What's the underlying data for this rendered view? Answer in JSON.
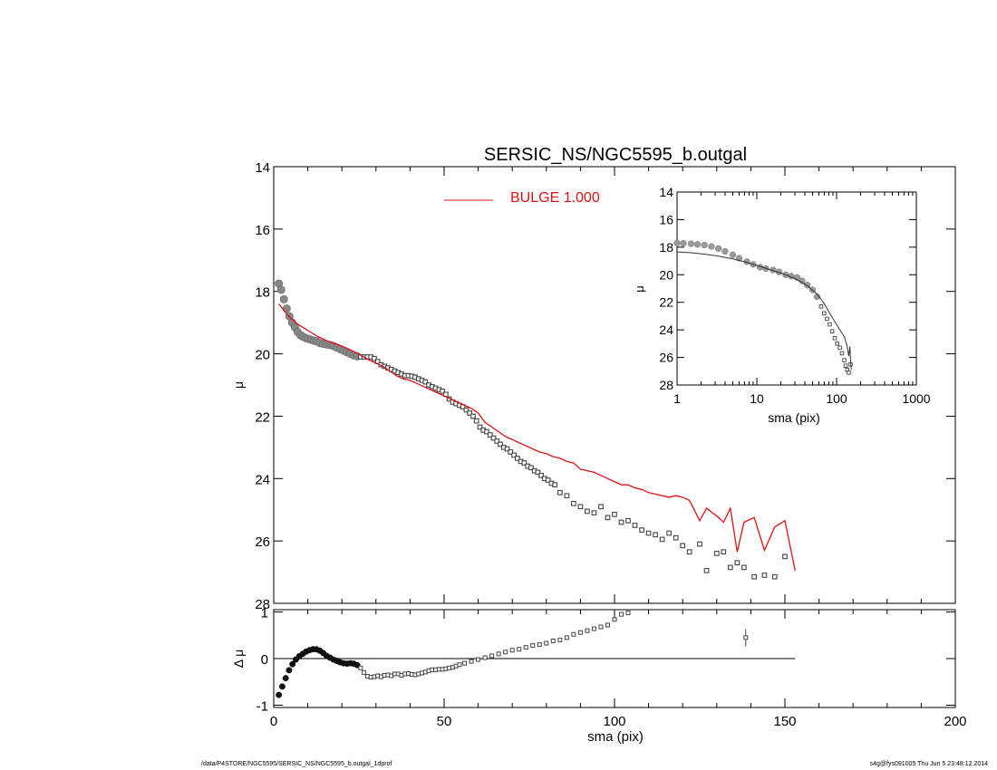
{
  "chart_data": [
    {
      "type": "scatter",
      "title": "SERSIC_NS/NGC5595_b.outgal",
      "xlabel": "",
      "ylabel": "μ",
      "xlim": [
        0,
        200
      ],
      "ylim": [
        28,
        14
      ],
      "y_inverted": true,
      "y_ticks": [
        "14",
        "16",
        "18",
        "20",
        "22",
        "24",
        "26",
        "28"
      ],
      "legend": {
        "label": "BULGE  1.000",
        "color": "#dd1111",
        "placement": "top-center"
      },
      "series": [
        {
          "name": "data",
          "style": "squares",
          "color": "#555555",
          "x": [
            1.5,
            2.2,
            3.0,
            3.8,
            4.6,
            5.4,
            6.2,
            7.0,
            7.8,
            8.6,
            9.4,
            10.2,
            11.0,
            11.8,
            12.6,
            13.5,
            14.5,
            15.5,
            16.5,
            17.5,
            18.5,
            19.5,
            20.5,
            21.5,
            22.5,
            23.5,
            24.5,
            25.5,
            26.5,
            27.5,
            28.5,
            29.5,
            30.5,
            31.5,
            32.5,
            33.5,
            34.5,
            35.5,
            36.5,
            37.5,
            38.5,
            39.5,
            40.5,
            41.5,
            42.5,
            43.5,
            44.5,
            45.5,
            46.5,
            47.5,
            48.5,
            49.5,
            50.5,
            51.5,
            52.5,
            53.5,
            54.5,
            55.5,
            56.5,
            57.5,
            58.5,
            59.5,
            60.5,
            61.5,
            62.5,
            63.5,
            64.5,
            65.5,
            66.5,
            67.5,
            68.5,
            69.5,
            70.5,
            71.5,
            72.5,
            73.5,
            74.5,
            75.5,
            76.5,
            77.5,
            78.5,
            79.5,
            80.5,
            81.5,
            82.5,
            84,
            86,
            88,
            90,
            92,
            94,
            96,
            98,
            100,
            102,
            104,
            106,
            108,
            110,
            112,
            114,
            116,
            118,
            120,
            122,
            125,
            127,
            130,
            132,
            134,
            136,
            138,
            141,
            144,
            147,
            150
          ],
          "y": [
            17.75,
            17.95,
            18.25,
            18.55,
            18.8,
            19.0,
            19.15,
            19.3,
            19.4,
            19.45,
            19.5,
            19.52,
            19.55,
            19.58,
            19.6,
            19.65,
            19.68,
            19.7,
            19.72,
            19.75,
            19.8,
            19.85,
            19.9,
            19.95,
            20.0,
            20.05,
            20.08,
            20.1,
            20.1,
            20.1,
            20.1,
            20.15,
            20.25,
            20.35,
            20.4,
            20.45,
            20.5,
            20.55,
            20.6,
            20.65,
            20.7,
            20.7,
            20.72,
            20.75,
            20.8,
            20.85,
            20.9,
            21.0,
            21.05,
            21.1,
            21.15,
            21.2,
            21.3,
            21.45,
            21.55,
            21.6,
            21.65,
            21.7,
            21.8,
            21.9,
            22.0,
            22.15,
            22.35,
            22.45,
            22.5,
            22.6,
            22.7,
            22.8,
            22.9,
            23.0,
            23.05,
            23.15,
            23.25,
            23.35,
            23.45,
            23.5,
            23.6,
            23.65,
            23.75,
            23.8,
            23.9,
            24.0,
            24.05,
            24.15,
            24.2,
            24.45,
            24.55,
            24.8,
            24.9,
            25.05,
            25.1,
            24.9,
            25.25,
            25.15,
            25.4,
            25.35,
            25.5,
            25.65,
            25.75,
            25.8,
            25.95,
            25.75,
            25.9,
            26.15,
            26.35,
            26.1,
            26.95,
            26.4,
            26.35,
            26.85,
            26.7,
            26.85,
            27.15,
            27.1,
            27.15,
            26.5
          ]
        },
        {
          "name": "BULGE  1.000",
          "style": "line",
          "color": "#dd1111",
          "x": [
            1.5,
            4,
            7,
            10,
            13,
            16,
            20,
            24,
            28,
            32,
            34,
            36,
            38,
            40,
            42,
            44,
            46,
            48,
            50,
            52,
            54,
            56,
            58,
            60,
            62,
            64,
            66,
            68,
            70,
            72,
            74,
            76,
            78,
            80,
            82,
            84,
            86,
            88,
            90,
            92,
            94,
            96,
            98,
            100,
            102,
            104,
            106,
            108,
            110,
            112,
            114,
            116,
            118,
            120,
            122,
            125,
            127,
            130,
            132,
            134,
            136,
            138,
            141,
            144,
            147,
            150,
            153
          ],
          "y": [
            18.4,
            18.75,
            19.05,
            19.25,
            19.45,
            19.6,
            19.75,
            19.95,
            20.2,
            20.4,
            20.55,
            20.7,
            20.8,
            20.85,
            20.95,
            21.05,
            21.15,
            21.25,
            21.35,
            21.45,
            21.55,
            21.65,
            21.75,
            21.9,
            22.2,
            22.35,
            22.5,
            22.65,
            22.75,
            22.85,
            22.95,
            23.05,
            23.15,
            23.2,
            23.3,
            23.35,
            23.45,
            23.5,
            23.7,
            23.75,
            23.8,
            23.9,
            24.0,
            24.1,
            24.2,
            24.2,
            24.3,
            24.35,
            24.45,
            24.5,
            24.55,
            24.6,
            24.55,
            24.6,
            24.7,
            25.35,
            24.95,
            25.2,
            25.4,
            24.95,
            26.35,
            25.4,
            25.25,
            26.3,
            25.55,
            25.35,
            26.95
          ]
        }
      ]
    },
    {
      "type": "scatter",
      "title": "",
      "xlabel": "sma (pix)",
      "ylabel": "Δ μ",
      "xlim": [
        0,
        200
      ],
      "ylim": [
        -1.05,
        1.05
      ],
      "x_ticks": [
        "0",
        "50",
        "100",
        "150",
        "200"
      ],
      "y_ticks": [
        "-1",
        "0",
        "1"
      ],
      "zero_line": {
        "from": 0,
        "to": 153
      },
      "series": [
        {
          "name": "residual",
          "style": "squares",
          "color": "#555555",
          "x": [
            1.5,
            2.5,
            3.5,
            4.5,
            5.5,
            6.5,
            7.5,
            8.5,
            9.5,
            10.5,
            11.5,
            12.5,
            13.5,
            14.5,
            15.5,
            16.5,
            17.5,
            18.5,
            19.5,
            20.5,
            21.5,
            22.5,
            23.5,
            24.5,
            25.5,
            26.5,
            27.5,
            28.5,
            29.5,
            30.5,
            31.5,
            32.5,
            33.5,
            34.5,
            35.5,
            36.5,
            37.5,
            38.5,
            39.5,
            40.5,
            41.5,
            42.5,
            43.5,
            44.5,
            45.5,
            46.5,
            47.5,
            48.5,
            49.5,
            50.5,
            51.5,
            52.5,
            53.5,
            54.5,
            56,
            58,
            60,
            62,
            64,
            66,
            68,
            70,
            72,
            74,
            76,
            78,
            80,
            82,
            84,
            86,
            88,
            90,
            92,
            94,
            96,
            98,
            100,
            102,
            104
          ],
          "y": [
            -0.78,
            -0.6,
            -0.42,
            -0.25,
            -0.12,
            -0.02,
            0.05,
            0.1,
            0.15,
            0.18,
            0.2,
            0.2,
            0.17,
            0.12,
            0.06,
            0.02,
            -0.02,
            -0.05,
            -0.08,
            -0.1,
            -0.11,
            -0.1,
            -0.11,
            -0.14,
            -0.2,
            -0.3,
            -0.38,
            -0.4,
            -0.39,
            -0.37,
            -0.39,
            -0.36,
            -0.35,
            -0.37,
            -0.33,
            -0.33,
            -0.36,
            -0.33,
            -0.32,
            -0.34,
            -0.35,
            -0.33,
            -0.31,
            -0.29,
            -0.26,
            -0.24,
            -0.24,
            -0.23,
            -0.23,
            -0.22,
            -0.2,
            -0.19,
            -0.16,
            -0.13,
            -0.1,
            -0.06,
            -0.02,
            0.02,
            0.06,
            0.1,
            0.14,
            0.18,
            0.2,
            0.24,
            0.28,
            0.3,
            0.33,
            0.38,
            0.4,
            0.45,
            0.52,
            0.56,
            0.6,
            0.64,
            0.68,
            0.72,
            0.84,
            0.95,
            0.98
          ]
        }
      ],
      "error_bar": {
        "x": 138.5,
        "y": 0.45,
        "err": 0.18
      }
    },
    {
      "type": "scatter",
      "title": "",
      "xlabel": "sma (pix)",
      "ylabel": "μ",
      "x_scale": "log",
      "xlim": [
        1,
        1000
      ],
      "ylim": [
        28,
        14
      ],
      "y_inverted": true,
      "x_ticks": [
        "1",
        "10",
        "100",
        "1000"
      ],
      "y_ticks": [
        "14",
        "16",
        "18",
        "20",
        "22",
        "24",
        "26",
        "28"
      ],
      "series": [
        {
          "name": "data",
          "style": "squares",
          "color": "#555555",
          "x": [
            1.0,
            1.2,
            1.5,
            1.8,
            2.2,
            2.7,
            3.3,
            4.0,
            5.0,
            6.0,
            7.5,
            9.0,
            11,
            13,
            16,
            19,
            23,
            27,
            32,
            37,
            43,
            50,
            57,
            64,
            70,
            76,
            82,
            88,
            95,
            102,
            110,
            117,
            125,
            130,
            136,
            142,
            150
          ],
          "y": [
            17.7,
            17.72,
            17.75,
            17.8,
            17.85,
            17.95,
            18.1,
            18.3,
            18.55,
            18.8,
            19.05,
            19.25,
            19.45,
            19.55,
            19.65,
            19.8,
            20.0,
            20.1,
            20.2,
            20.45,
            20.75,
            21.1,
            21.6,
            22.3,
            22.8,
            23.2,
            23.6,
            24.1,
            24.6,
            25.0,
            25.3,
            25.7,
            26.2,
            26.6,
            26.9,
            27.1,
            26.5
          ]
        },
        {
          "name": "model",
          "style": "line",
          "color": "#555555",
          "x": [
            1.0,
            1.5,
            2.2,
            3.3,
            5.0,
            7.5,
            11,
            16,
            23,
            32,
            43,
            57,
            70,
            82,
            95,
            110,
            125,
            136,
            142,
            147,
            150,
            153
          ],
          "y": [
            18.35,
            18.4,
            18.5,
            18.65,
            18.85,
            19.1,
            19.4,
            19.7,
            20.0,
            20.35,
            20.8,
            21.4,
            22.1,
            22.8,
            23.4,
            24.0,
            24.5,
            25.2,
            25.9,
            25.2,
            26.3,
            26.9
          ]
        }
      ]
    }
  ],
  "footer": {
    "left": "/data/P4STORE/NGC5595/SERSIC_NS/NGC5595_b.outgal_1dprof",
    "right": "s4g@fys091005  Thu Jun  5 23:48:12 2014"
  }
}
